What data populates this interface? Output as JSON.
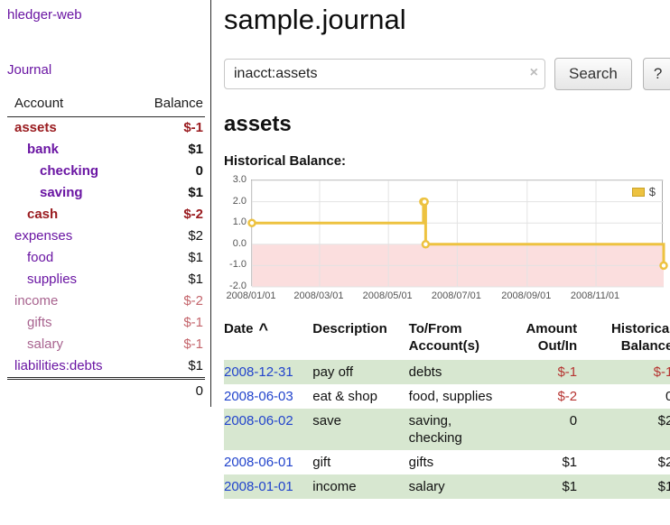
{
  "colors": {
    "link_purple": "#6a15a3",
    "negative_dark_red": "#9a1c20",
    "negative_light_red": "#c4656c",
    "date_link_blue": "#2244cc",
    "row_stripe_green": "#d7e7d0",
    "chart_series_gold": "#edc240",
    "chart_negative_fill": "#fbdede"
  },
  "sidebar": {
    "app_title": "hledger-web",
    "journal_link": "Journal",
    "accounts": {
      "header_account": "Account",
      "header_balance": "Balance",
      "rows": [
        {
          "name": "assets",
          "balance": "$-1"
        },
        {
          "name": "bank",
          "balance": "$1"
        },
        {
          "name": "checking",
          "balance": "0"
        },
        {
          "name": "saving",
          "balance": "$1"
        },
        {
          "name": "cash",
          "balance": "$-2"
        },
        {
          "name": "expenses",
          "balance": "$2"
        },
        {
          "name": "food",
          "balance": "$1"
        },
        {
          "name": "supplies",
          "balance": "$1"
        },
        {
          "name": "income",
          "balance": "$-2"
        },
        {
          "name": "gifts",
          "balance": "$-1"
        },
        {
          "name": "salary",
          "balance": "$-1"
        },
        {
          "name": "liabilities:debts",
          "balance": "$1"
        }
      ],
      "total": "0"
    }
  },
  "main": {
    "title": "sample.journal",
    "search": {
      "value": "inacct:assets",
      "clear_icon": "×",
      "search_button": "Search",
      "help_button": "?"
    },
    "section_title": "assets",
    "chart_title": "Historical Balance:"
  },
  "chart_data": {
    "type": "line",
    "step": true,
    "title": "Historical Balance",
    "legend": [
      {
        "label": "$",
        "color": "#edc240"
      }
    ],
    "legend_position": "top-right",
    "grid": true,
    "xlim_days": [
      0,
      365
    ],
    "ylim": [
      -2,
      3
    ],
    "yticks": [
      "3.0",
      "2.0",
      "1.0",
      "0.0",
      "-1.0",
      "-2.0"
    ],
    "ytick_values": [
      3,
      2,
      1,
      0,
      -1,
      -2
    ],
    "xticks": [
      {
        "day": 0,
        "label": "2008/01/01"
      },
      {
        "day": 60,
        "label": "2008/03/01"
      },
      {
        "day": 121,
        "label": "2008/05/01"
      },
      {
        "day": 182,
        "label": "2008/07/01"
      },
      {
        "day": 244,
        "label": "2008/09/01"
      },
      {
        "day": 305,
        "label": "2008/11/01"
      }
    ],
    "negative_region_fill": "#fbdede",
    "series": [
      {
        "name": "$",
        "color": "#edc240",
        "points": [
          {
            "date": "2008-01-01",
            "day": 0,
            "value": 1
          },
          {
            "date": "2008-06-01",
            "day": 152,
            "value": 2
          },
          {
            "date": "2008-06-02",
            "day": 153,
            "value": 2
          },
          {
            "date": "2008-06-03",
            "day": 154,
            "value": 0
          },
          {
            "date": "2008-12-31",
            "day": 365,
            "value": -1
          }
        ]
      }
    ]
  },
  "register": {
    "headers": {
      "date": "Date",
      "sort_indicator": "^",
      "description": "Description",
      "account": "To/From Account(s)",
      "amount": "Amount Out/In",
      "balance": "Historical Balance"
    },
    "rows": [
      {
        "date": "2008-12-31",
        "description": "pay off",
        "account": "debts",
        "amount": "$-1",
        "balance": "$-1"
      },
      {
        "date": "2008-06-03",
        "description": "eat & shop",
        "account": "food, supplies",
        "amount": "$-2",
        "balance": "0"
      },
      {
        "date": "2008-06-02",
        "description": "save",
        "account": "saving, checking",
        "amount": "0",
        "balance": "$2"
      },
      {
        "date": "2008-06-01",
        "description": "gift",
        "account": "gifts",
        "amount": "$1",
        "balance": "$2"
      },
      {
        "date": "2008-01-01",
        "description": "income",
        "account": "salary",
        "amount": "$1",
        "balance": "$1"
      }
    ]
  }
}
